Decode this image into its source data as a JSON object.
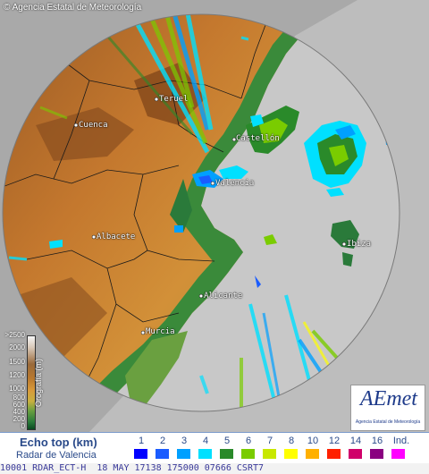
{
  "header": {
    "copyright": "© Agencia Estatal de Meteorología"
  },
  "cities": [
    {
      "name": "Teruel"
    },
    {
      "name": "Cuenca"
    },
    {
      "name": "Castellón"
    },
    {
      "name": "Valencia"
    },
    {
      "name": "Albacete"
    },
    {
      "name": "Ibiza"
    },
    {
      "name": "Alicante"
    },
    {
      "name": "Murcia"
    }
  ],
  "orography": {
    "title": "Orografía (m)",
    "levels": [
      ">2500",
      "2000",
      "1500",
      "1200",
      "1000",
      "800",
      "600",
      "400",
      "200",
      "0"
    ]
  },
  "logo": {
    "word": "AEmet",
    "subtitle": "Agencia Estatal de Meteorología"
  },
  "legend": {
    "title": "Echo top (km)",
    "subtitle": "Radar de Valencia",
    "swatches": [
      {
        "label": "1",
        "color": "#0000ff"
      },
      {
        "label": "2",
        "color": "#1a5cff"
      },
      {
        "label": "3",
        "color": "#00a0ff"
      },
      {
        "label": "4",
        "color": "#00e0ff"
      },
      {
        "label": "5",
        "color": "#2a8a2a"
      },
      {
        "label": "6",
        "color": "#7acc00"
      },
      {
        "label": "7",
        "color": "#c8e800"
      },
      {
        "label": "8",
        "color": "#ffff00"
      },
      {
        "label": "10",
        "color": "#ffb000"
      },
      {
        "label": "12",
        "color": "#ff2000"
      },
      {
        "label": "14",
        "color": "#d0006a"
      },
      {
        "label": "16",
        "color": "#8a0080"
      },
      {
        "label": "Ind.",
        "color": "#ff00ff"
      }
    ]
  },
  "status": {
    "text": "10001 RDAR_ECT-H  18 MAY 17138 175000 07666 CSRT7"
  }
}
